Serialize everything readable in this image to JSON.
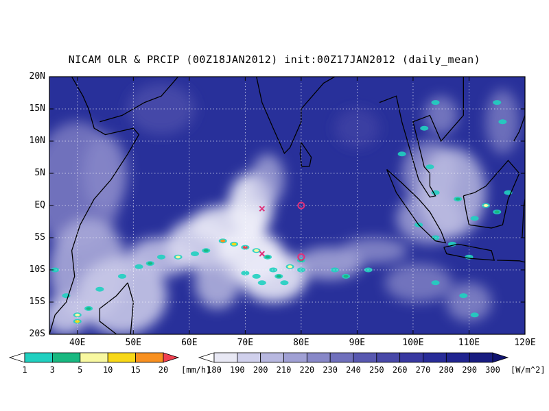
{
  "title": "NICAM OLR & PRCIP (00Z18JAN2012) init:00Z17JAN2012 (daily_mean)",
  "map": {
    "lon_range": [
      35,
      120
    ],
    "lat_range": [
      -20,
      20
    ],
    "lat_labels": [
      "20N",
      "15N",
      "10N",
      "5N",
      "EQ",
      "5S",
      "10S",
      "15S",
      "20S"
    ],
    "lon_labels": [
      "40E",
      "50E",
      "60E",
      "70E",
      "80E",
      "90E",
      "100E",
      "110E",
      "120E"
    ],
    "background_color": "#28309a",
    "markers": [
      {
        "symbol": "x",
        "lon": 73,
        "lat": -0.5,
        "color": "#e0307a"
      },
      {
        "symbol": "x",
        "lon": 73,
        "lat": -7.5,
        "color": "#e0307a"
      },
      {
        "symbol": "o",
        "lon": 80,
        "lat": 0,
        "color": "#e0307a"
      },
      {
        "symbol": "o",
        "lon": 80,
        "lat": -8,
        "color": "#e0307a"
      }
    ]
  },
  "precip_colorbar": {
    "unit": "[mm/h]",
    "labels": [
      "1",
      "3",
      "5",
      "10",
      "15",
      "20"
    ],
    "colors": [
      "#ffffff",
      "#20d0c0",
      "#18b880",
      "#f8f8a0",
      "#f8d818",
      "#f89020",
      "#f04050"
    ]
  },
  "olr_colorbar": {
    "unit": "[W/m^2]",
    "labels": [
      "180",
      "190",
      "200",
      "210",
      "220",
      "230",
      "240",
      "250",
      "260",
      "270",
      "280",
      "290",
      "300"
    ],
    "colors": [
      "#ffffff",
      "#e8e8f4",
      "#d0d0ec",
      "#b8b8e0",
      "#a0a0d4",
      "#8888c8",
      "#7070bc",
      "#5858b0",
      "#4848a8",
      "#3838a0",
      "#282c98",
      "#202490",
      "#181c80",
      "#101470"
    ]
  }
}
